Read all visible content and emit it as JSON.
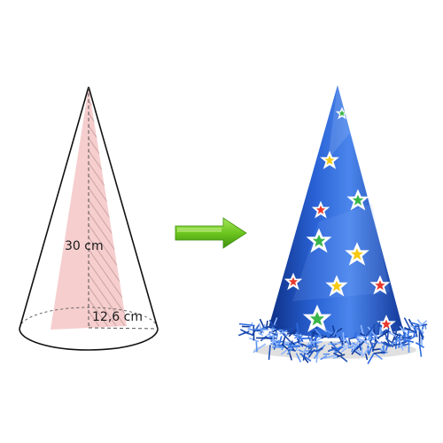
{
  "cone_diagram": {
    "height_label": "30 cm",
    "radius_label": "12,6 cm",
    "fill_color": "#f4c6c6",
    "hatch_color": "#b08a8a",
    "outline_color": "#111111"
  },
  "arrow": {
    "icon": "right-arrow-icon",
    "color": "#6cc61e"
  },
  "party_hat": {
    "body_color": "#1f4fb4",
    "tinsel_color": "#2e6be0",
    "star_colors": [
      "#ffffff",
      "#e8372a",
      "#39b54a",
      "#f6c915"
    ]
  }
}
